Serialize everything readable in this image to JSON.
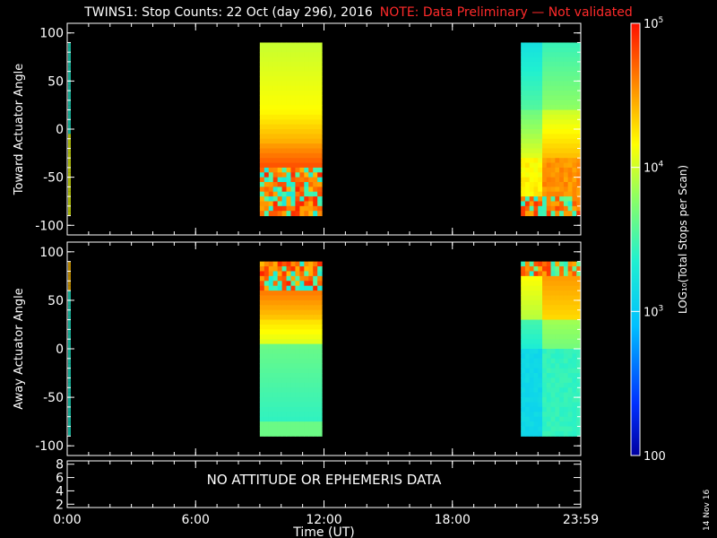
{
  "title": {
    "main": "TWINS1: Stop Counts: 22 Oct (day 296), 2016",
    "note": "NOTE: Data Preliminary — Not validated"
  },
  "side_date": "14 Nov 16",
  "chart_data": [
    {
      "type": "heatmap",
      "name": "toward",
      "ylabel": "Toward Actuator Angle",
      "ylim": [
        -110,
        110
      ],
      "yticks": [
        100,
        50,
        0,
        -50,
        -100
      ],
      "xlim": [
        0,
        24
      ],
      "segments": [
        {
          "x_start": 9.0,
          "x_end": 11.9,
          "y_min": -90,
          "y_max": 90
        },
        {
          "x_start": 21.2,
          "x_end": 24.0,
          "y_min": -90,
          "y_max": 90
        }
      ]
    },
    {
      "type": "heatmap",
      "name": "away",
      "ylabel": "Away Actuator Angle",
      "ylim": [
        -110,
        110
      ],
      "yticks": [
        100,
        50,
        0,
        -50,
        -100
      ],
      "xlim": [
        0,
        24
      ],
      "segments": [
        {
          "x_start": 9.0,
          "x_end": 11.9,
          "y_min": -90,
          "y_max": 90
        },
        {
          "x_start": 21.2,
          "x_end": 24.0,
          "y_min": -90,
          "y_max": 90
        }
      ]
    },
    {
      "type": "line",
      "name": "attitude",
      "yticks": [
        8,
        6,
        4,
        2
      ],
      "ylim": [
        1.5,
        8.5
      ],
      "message": "NO ATTITUDE OR EPHEMERIS DATA"
    }
  ],
  "x_axis": {
    "label": "Time (UT)",
    "ticks": [
      {
        "value": 0,
        "label": "0:00"
      },
      {
        "value": 6,
        "label": "6:00"
      },
      {
        "value": 12,
        "label": "12:00"
      },
      {
        "value": 18,
        "label": "18:00"
      },
      {
        "value": 24,
        "label": "23:59"
      }
    ]
  },
  "colorbar": {
    "label": "LOG₁₀(Total Stops per Scan)",
    "scale": "log",
    "range": [
      100,
      100000
    ],
    "ticks": [
      {
        "value": 100000,
        "base": "10",
        "exp": "5"
      },
      {
        "value": 10000,
        "base": "10",
        "exp": "4"
      },
      {
        "value": 1000,
        "base": "10",
        "exp": "3"
      },
      {
        "value": 100,
        "base": "100",
        "exp": ""
      }
    ]
  }
}
